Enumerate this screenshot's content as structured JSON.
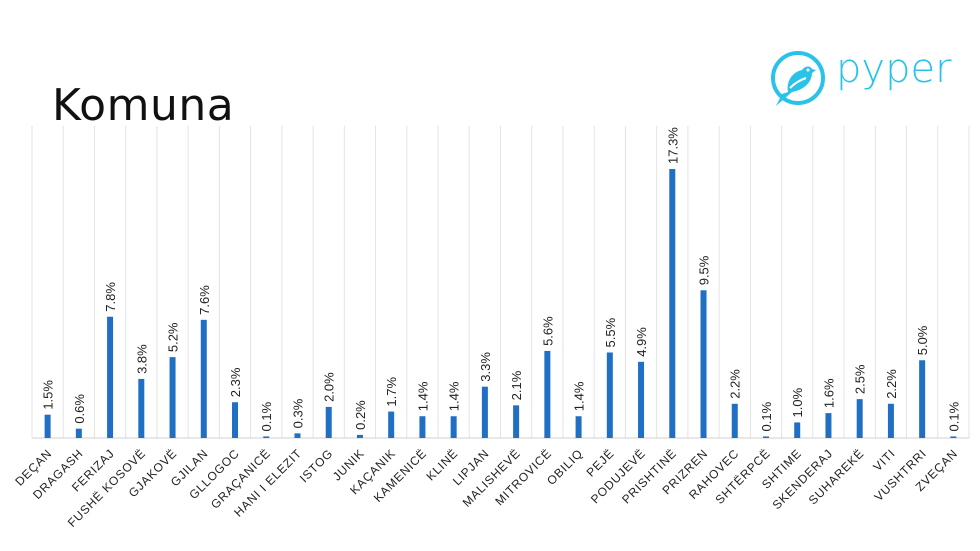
{
  "header": {
    "title": "Komuna"
  },
  "logo": {
    "text": "pyper",
    "icon": "bird-icon",
    "color": "#29c3ea"
  },
  "chart_data": {
    "type": "bar",
    "title": "Komuna",
    "xlabel": "",
    "ylabel": "",
    "ylim": [
      0,
      17.3
    ],
    "grid": "vertical",
    "bar_color": "#1f6fc4",
    "categories": [
      "DEÇAN",
      "DRAGASH",
      "FERIZAJ",
      "FUSHË KOSOVË",
      "GJAKOVË",
      "GJILAN",
      "GLLOGOC",
      "GRAÇANICË",
      "HANI I ELEZIT",
      "ISTOG",
      "JUNIK",
      "KAÇANIK",
      "KAMENICË",
      "KLINË",
      "LIPJAN",
      "MALISHEVË",
      "MITROVICË",
      "OBILIQ",
      "PEJË",
      "PODUJEVË",
      "PRISHTINË",
      "PRIZREN",
      "RAHOVEC",
      "SHTËRPCË",
      "SHTIME",
      "SKENDERAJ",
      "SUHAREKË",
      "VITI",
      "VUSHTRRI",
      "ZVEÇAN"
    ],
    "values": [
      1.5,
      0.6,
      7.8,
      3.8,
      5.2,
      7.6,
      2.3,
      0.1,
      0.3,
      2.0,
      0.2,
      1.7,
      1.4,
      1.4,
      3.3,
      2.1,
      5.6,
      1.4,
      5.5,
      4.9,
      17.3,
      9.5,
      2.2,
      0.1,
      1.0,
      1.6,
      2.5,
      2.2,
      5.0,
      0.1
    ],
    "labels": [
      "1.5%",
      "0.6%",
      "7.8%",
      "3.8%",
      "5.2%",
      "7.6%",
      "2.3%",
      "0.1%",
      "0.3%",
      "2.0%",
      "0.2%",
      "1.7%",
      "1.4%",
      "1.4%",
      "3.3%",
      "2.1%",
      "5.6%",
      "1.4%",
      "5.5%",
      "4.9%",
      "17.3%",
      "9.5%",
      "2.2%",
      "0.1%",
      "1.0%",
      "1.6%",
      "2.5%",
      "2.2%",
      "5.0%",
      "0.1%"
    ]
  }
}
